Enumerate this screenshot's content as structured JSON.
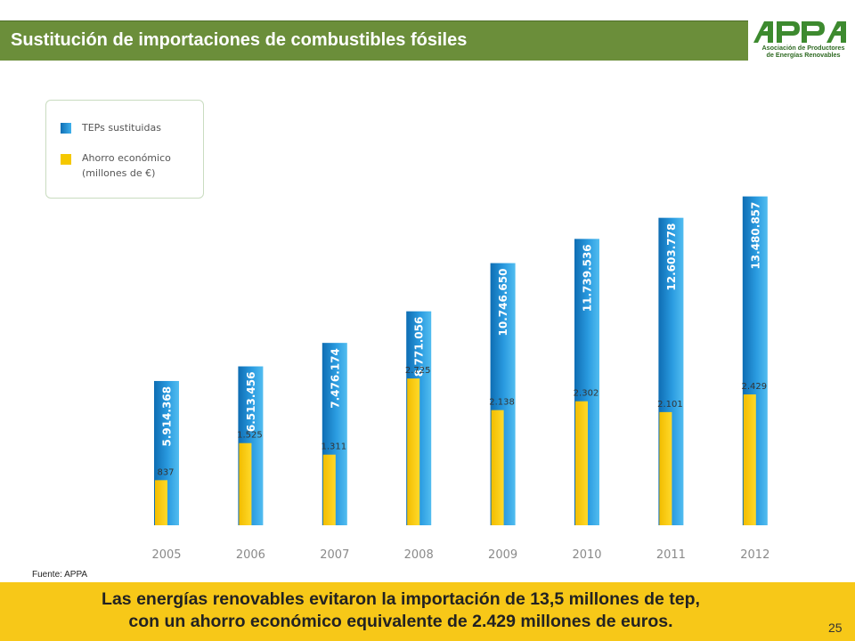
{
  "header": {
    "title": "Sustitución de importaciones de combustibles fósiles"
  },
  "logo": {
    "letters": "APPA",
    "subtitle_line1": "Asociación de Productores",
    "subtitle_line2": "de Energías Renovables"
  },
  "legend": {
    "tep_label": "TEPs sustituidas",
    "ahorro_label_line1": "Ahorro económico",
    "ahorro_label_line2": "(millones de €)"
  },
  "source": "Fuente: APPA",
  "footer": {
    "line1": "Las energías renovables evitaron la importación de 13,5 millones de tep,",
    "line2": "con un ahorro económico equivalente de 2.429 millones de euros."
  },
  "page_number": "25",
  "colors": {
    "header_green": "#6b8e3a",
    "tep_blue": "#1e90d6",
    "ahorro_yellow": "#f5c800",
    "footer_yellow": "#f7c818"
  },
  "chart_data": {
    "type": "bar",
    "categories": [
      "2005",
      "2006",
      "2007",
      "2008",
      "2009",
      "2010",
      "2011",
      "2012"
    ],
    "series": [
      {
        "name": "TEPs sustituidas",
        "values": [
          5914368,
          6513456,
          7476174,
          8771056,
          10746650,
          11739536,
          12603778,
          13480857
        ],
        "labels": [
          "5.914.368",
          "6.513.456",
          "7.476.174",
          "8.771.056",
          "10.746.650",
          "11.739.536",
          "12.603.778",
          "13.480.857"
        ]
      },
      {
        "name": "Ahorro económico (millones de €)",
        "values": [
          837,
          1525,
          1311,
          2725,
          2138,
          2302,
          2101,
          2429
        ],
        "labels": [
          "837",
          "1.525",
          "1.311",
          "2.725",
          "2.138",
          "2.302",
          "2.101",
          "2.429"
        ]
      }
    ],
    "grid": false,
    "legend_position": "top-left"
  }
}
